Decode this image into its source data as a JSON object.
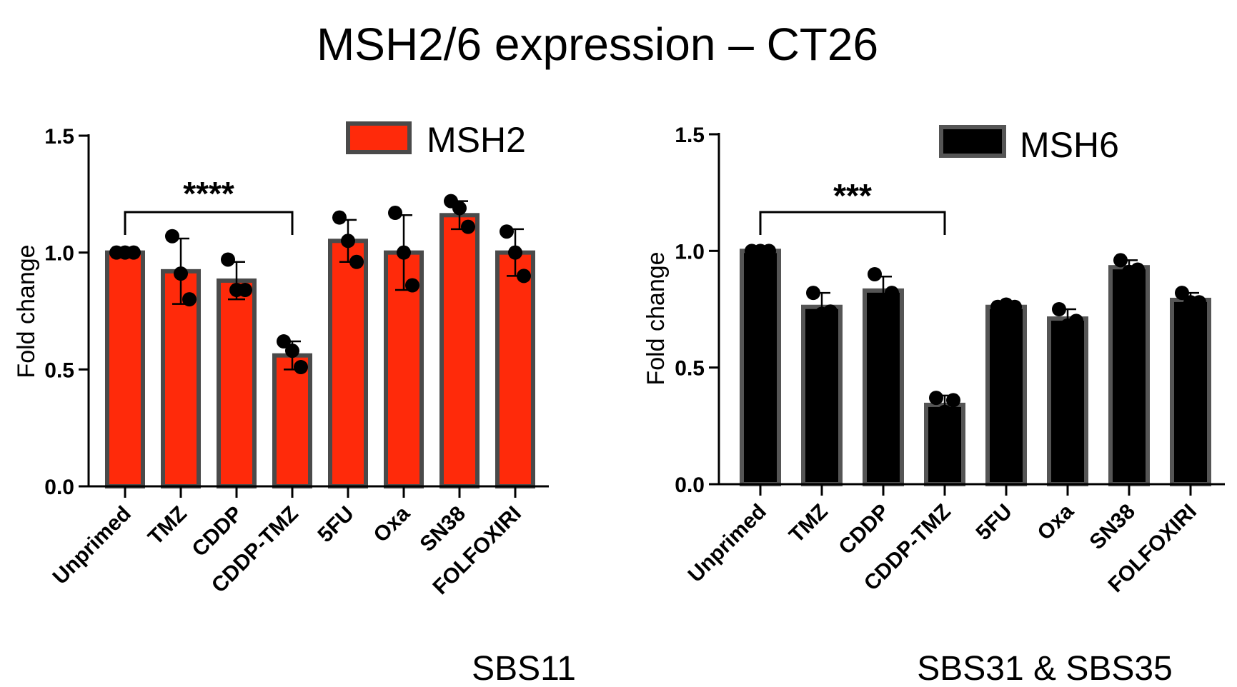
{
  "figure": {
    "title": "MSH2/6 expression – CT26"
  },
  "chart_data": [
    {
      "type": "bar",
      "ylabel": "Fold change",
      "xlabel": "",
      "ylim": [
        0,
        1.5
      ],
      "yticks": [
        "0.0",
        "0.5",
        "1.0",
        "1.5"
      ],
      "categories": [
        "Unprimed",
        "TMZ",
        "CDDP",
        "CDDP-TMZ",
        "5FU",
        "Oxa",
        "SN38",
        "FOLFOXIRI"
      ],
      "series": [
        {
          "name": "MSH2",
          "color": "#ff2a0a",
          "values": [
            1.0,
            0.92,
            0.88,
            0.56,
            1.05,
            1.0,
            1.16,
            1.0
          ],
          "sd": [
            0.0,
            0.14,
            0.08,
            0.06,
            0.09,
            0.16,
            0.06,
            0.1
          ],
          "points": [
            [
              1.0,
              1.0,
              1.0
            ],
            [
              1.07,
              0.91,
              0.8
            ],
            [
              0.97,
              0.84,
              0.84
            ],
            [
              0.62,
              0.58,
              0.51
            ],
            [
              1.15,
              1.05,
              0.96
            ],
            [
              1.17,
              1.0,
              0.86
            ],
            [
              1.22,
              1.19,
              1.11
            ],
            [
              1.09,
              1.0,
              0.9
            ]
          ]
        }
      ],
      "significance": {
        "from": "Unprimed",
        "to": "CDDP-TMZ",
        "label": "****"
      },
      "legend": "top-right",
      "caption": "SBS11",
      "grid": false
    },
    {
      "type": "bar",
      "ylabel": "Fold change",
      "xlabel": "",
      "ylim": [
        0,
        1.5
      ],
      "yticks": [
        "0.0",
        "0.5",
        "1.0",
        "1.5"
      ],
      "categories": [
        "Unprimed",
        "TMZ",
        "CDDP",
        "CDDP-TMZ",
        "5FU",
        "Oxa",
        "SN38",
        "FOLFOXIRI"
      ],
      "series": [
        {
          "name": "MSH6",
          "color": "#000000",
          "values": [
            1.0,
            0.76,
            0.83,
            0.34,
            0.76,
            0.71,
            0.93,
            0.79
          ],
          "sd": [
            0.0,
            0.06,
            0.06,
            0.04,
            0.01,
            0.04,
            0.03,
            0.03
          ],
          "points": [
            [
              1.0,
              1.0,
              1.0
            ],
            [
              0.82,
              0.73,
              0.74
            ],
            [
              0.9,
              0.78,
              0.82
            ],
            [
              0.37,
              0.31,
              0.36
            ],
            [
              0.76,
              0.77,
              0.76
            ],
            [
              0.75,
              0.68,
              0.7
            ],
            [
              0.96,
              0.91,
              0.92
            ],
            [
              0.82,
              0.78,
              0.78
            ]
          ]
        }
      ],
      "significance": {
        "from": "Unprimed",
        "to": "CDDP-TMZ",
        "label": "***"
      },
      "legend": "top-right",
      "caption": "SBS31 & SBS35",
      "grid": false
    }
  ]
}
